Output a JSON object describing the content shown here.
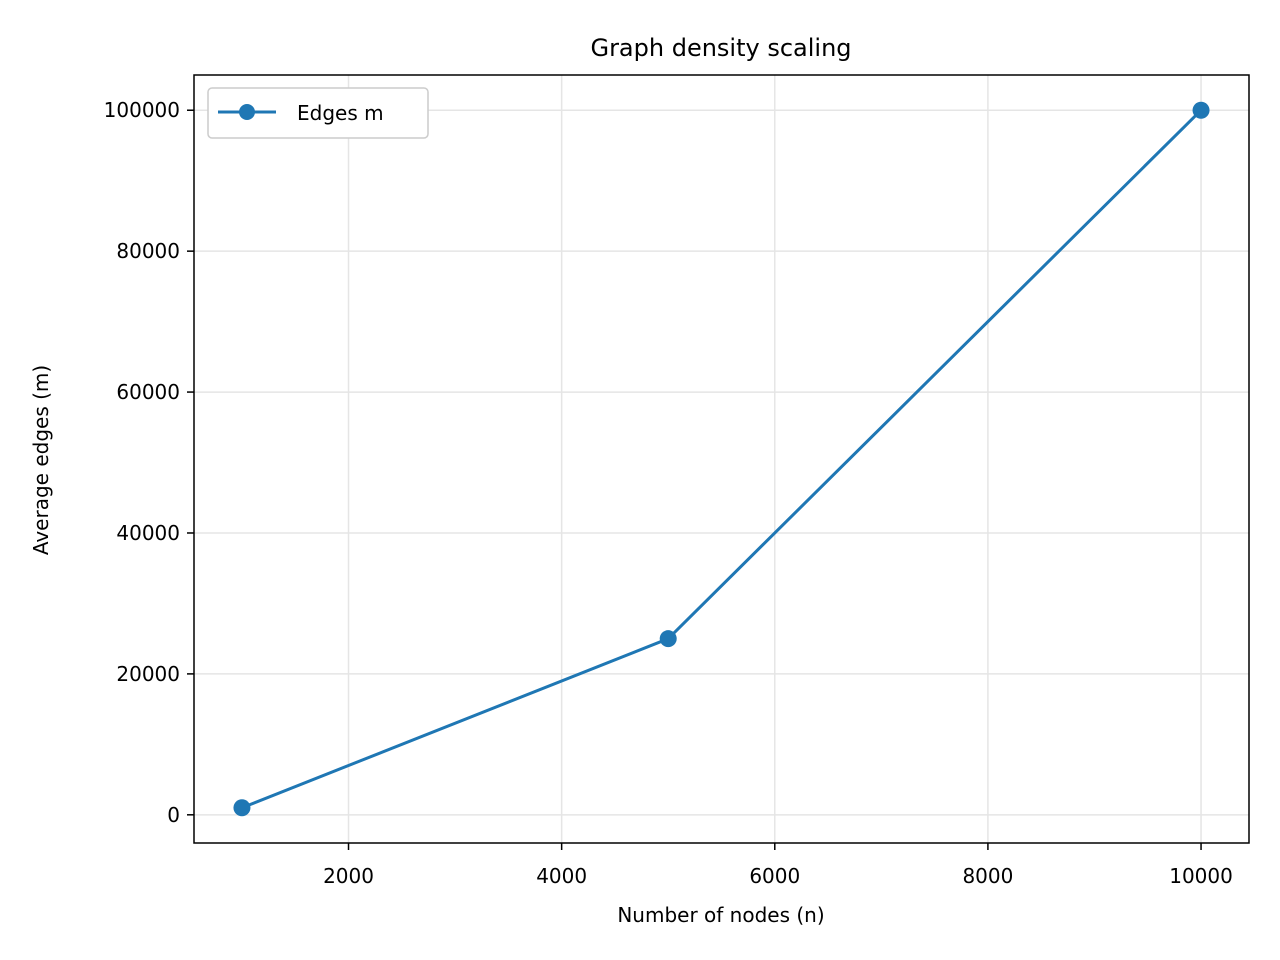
{
  "chart_data": {
    "type": "line",
    "title": "Graph density scaling",
    "xlabel": "Number of nodes (n)",
    "ylabel": "Average edges (m)",
    "xlim": [
      550,
      10450
    ],
    "ylim": [
      -4000,
      105000
    ],
    "xticks": [
      2000,
      4000,
      6000,
      8000,
      10000
    ],
    "yticks": [
      0,
      20000,
      40000,
      60000,
      80000,
      100000
    ],
    "grid": true,
    "legend_position": "top-left",
    "series": [
      {
        "name": "Edges m",
        "color": "#1f77b4",
        "marker": "circle",
        "x": [
          1000,
          5000,
          10000
        ],
        "y": [
          1000,
          25000,
          100000
        ]
      }
    ]
  }
}
